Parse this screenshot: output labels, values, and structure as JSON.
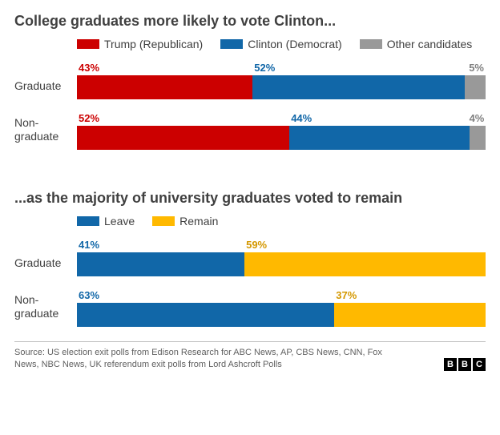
{
  "colors": {
    "trump": "#cc0000",
    "clinton": "#1167a8",
    "other": "#999999",
    "leave": "#1167a8",
    "remain": "#ffb900",
    "text": "#404040"
  },
  "chart1": {
    "title": "College graduates more likely to vote Clinton...",
    "legend": [
      {
        "label": "Trump (Republican)",
        "colorKey": "trump"
      },
      {
        "label": "Clinton (Democrat)",
        "colorKey": "clinton"
      },
      {
        "label": "Other candidates",
        "colorKey": "other"
      }
    ],
    "rows": [
      {
        "label": "Graduate",
        "segments": [
          {
            "pct": 43,
            "text": "43%",
            "colorKey": "trump",
            "labelColor": "#cc0000"
          },
          {
            "pct": 52,
            "text": "52%",
            "colorKey": "clinton",
            "labelColor": "#1167a8"
          },
          {
            "pct": 5,
            "text": "5%",
            "colorKey": "other",
            "labelColor": "#808080",
            "alignRight": true
          }
        ]
      },
      {
        "label": "Non-graduate",
        "segments": [
          {
            "pct": 52,
            "text": "52%",
            "colorKey": "trump",
            "labelColor": "#cc0000"
          },
          {
            "pct": 44,
            "text": "44%",
            "colorKey": "clinton",
            "labelColor": "#1167a8"
          },
          {
            "pct": 4,
            "text": "4%",
            "colorKey": "other",
            "labelColor": "#808080",
            "alignRight": true
          }
        ]
      }
    ]
  },
  "chart2": {
    "title": "...as the majority of university graduates voted to remain",
    "legend": [
      {
        "label": "Leave",
        "colorKey": "leave"
      },
      {
        "label": "Remain",
        "colorKey": "remain"
      }
    ],
    "rows": [
      {
        "label": "Graduate",
        "segments": [
          {
            "pct": 41,
            "text": "41%",
            "colorKey": "leave",
            "labelColor": "#1167a8"
          },
          {
            "pct": 59,
            "text": "59%",
            "colorKey": "remain",
            "labelColor": "#d49800"
          }
        ]
      },
      {
        "label": "Non-graduate",
        "segments": [
          {
            "pct": 63,
            "text": "63%",
            "colorKey": "leave",
            "labelColor": "#1167a8"
          },
          {
            "pct": 37,
            "text": "37%",
            "colorKey": "remain",
            "labelColor": "#d49800"
          }
        ]
      }
    ]
  },
  "source": "Source: US election exit polls from Edison Research for ABC News, AP, CBS News, CNN, Fox News, NBC News, UK referendum exit polls from Lord Ashcroft Polls",
  "logo": [
    "B",
    "B",
    "C"
  ]
}
